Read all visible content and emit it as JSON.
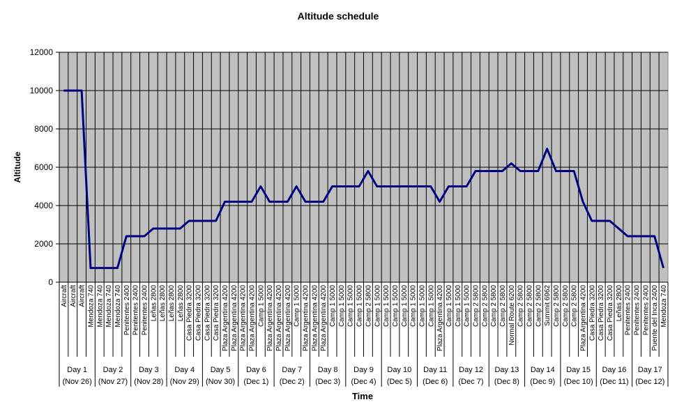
{
  "chart_data": {
    "type": "line",
    "title": "Altitude schedule",
    "x_label": "Time",
    "y_label": "Altitude",
    "categories": [
      "Aircraft",
      "Aircraft",
      "Aircraft",
      "Mendoza 740",
      "Mendoza 740",
      "Mendoza 740",
      "Mendoza 740",
      "Penitentes 2400",
      "Penitentes 2400",
      "Penitentes 2400",
      "Leñas 2800",
      "Leñas 2800",
      "Leñas 2800",
      "Leñas 2800",
      "Casa Piedra 3200",
      "Casa Piedra 3200",
      "Casa Piedra 3200",
      "Casa Piedra 3200",
      "Plaza Argentina 4200",
      "Plaza Argentina 4200",
      "Plaza Argentina 4200",
      "Plaza Argentina 4200",
      "Camp 1 5000",
      "Plaza Argentina 4200",
      "Plaza Argentina 4200",
      "Plaza Argentina 4200",
      "Camp 1 5000",
      "Plaza Argentina 4200",
      "Plaza Argentina 4200",
      "Plaza Argentina 4200",
      "Camp 1 5000",
      "Camp 1 5000",
      "Camp 1 5000",
      "Camp 1 5000",
      "Camp 2 5800",
      "Camp 1 5000",
      "Camp 1 5000",
      "Camp 1 5000",
      "Camp 1 5000",
      "Camp 1 5000",
      "Camp 1 5000",
      "Camp 1 5000",
      "Plaza Argentina 4200",
      "Camp 1 5000",
      "Camp 1 5000",
      "Camp 1 5000",
      "Camp 2 5800",
      "Camp 2 5800",
      "Camp 2 5800",
      "Camp 2 5800",
      "Normal Route 6200",
      "Camp 2 5800",
      "Camp 2 5800",
      "Camp 2 5800",
      "Summit 6962",
      "Camp 2 5800",
      "Camp 2 5800",
      "Camp 2 5800",
      "Plaza Argentina 4200",
      "Casa Piedra 3200",
      "Casa Piedra 3200",
      "Casa Piedra 3200",
      "Leñas 2800",
      "Penitentes 2400",
      "Penitentes 2400",
      "Penitentes 2400",
      "Puente del Inca 2400",
      "Mendoza 740"
    ],
    "values": [
      10000,
      10000,
      10000,
      740,
      740,
      740,
      740,
      2400,
      2400,
      2400,
      2800,
      2800,
      2800,
      2800,
      3200,
      3200,
      3200,
      3200,
      4200,
      4200,
      4200,
      4200,
      5000,
      4200,
      4200,
      4200,
      5000,
      4200,
      4200,
      4200,
      5000,
      5000,
      5000,
      5000,
      5800,
      5000,
      5000,
      5000,
      5000,
      5000,
      5000,
      5000,
      4200,
      5000,
      5000,
      5000,
      5800,
      5800,
      5800,
      5800,
      6200,
      5800,
      5800,
      5800,
      6962,
      5800,
      5800,
      5800,
      4200,
      3200,
      3200,
      3200,
      2800,
      2400,
      2400,
      2400,
      2400,
      740
    ],
    "groups": [
      {
        "label": "Day 1",
        "date": "(Nov 26)"
      },
      {
        "label": "Day 2",
        "date": "(Nov 27)"
      },
      {
        "label": "Day 3",
        "date": "(Nov 28)"
      },
      {
        "label": "Day 4",
        "date": "(Nov 29)"
      },
      {
        "label": "Day 5",
        "date": "(Nov 30)"
      },
      {
        "label": "Day 6",
        "date": "(Dec 1)"
      },
      {
        "label": "Day 7",
        "date": "(Dec 2)"
      },
      {
        "label": "Day 8",
        "date": "(Dec 3)"
      },
      {
        "label": "Day 9",
        "date": "(Dec 4)"
      },
      {
        "label": "Day 10",
        "date": "(Dec 5)"
      },
      {
        "label": "Day 11",
        "date": "(Dec 6)"
      },
      {
        "label": "Day 12",
        "date": "(Dec 7)"
      },
      {
        "label": "Day 13",
        "date": "(Dec 8)"
      },
      {
        "label": "Day 14",
        "date": "(Dec 9)"
      },
      {
        "label": "Day 15",
        "date": "(Dec 10)"
      },
      {
        "label": "Day 16",
        "date": "(Dec 11)"
      },
      {
        "label": "Day 17",
        "date": "(Dec 12)"
      }
    ],
    "color": "#000080",
    "plot_background": "#c0c0c0",
    "ylim": [
      0,
      12000
    ],
    "yticks": [
      0,
      2000,
      4000,
      6000,
      8000,
      10000,
      12000
    ],
    "grid": true
  }
}
